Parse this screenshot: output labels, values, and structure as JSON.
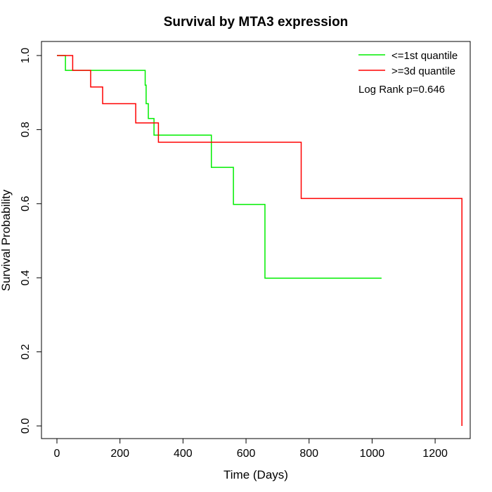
{
  "chart_data": {
    "type": "line",
    "subtype": "kaplan-meier-step",
    "title": "Survival by MTA3 expression",
    "xlabel": "Time (Days)",
    "ylabel": "Survival Probability",
    "xlim": [
      0,
      1260
    ],
    "ylim": [
      0,
      1
    ],
    "xticks": [
      0,
      200,
      400,
      600,
      800,
      1000,
      1200
    ],
    "xtick_labels": [
      "0",
      "200",
      "400",
      "600",
      "800",
      "1000",
      "1200"
    ],
    "yticks": [
      0.0,
      0.2,
      0.4,
      0.6,
      0.8,
      1.0
    ],
    "ytick_labels": [
      "0.0",
      "0.2",
      "0.4",
      "0.6",
      "0.8",
      "1.0"
    ],
    "grid": false,
    "legend_position": "top-right",
    "annotation": "Log Rank p=0.646",
    "series": [
      {
        "name": "<=1st quantile",
        "color": "#00ee00",
        "x": [
          0,
          27,
          27,
          280,
          280,
          283,
          283,
          290,
          290,
          308,
          308,
          355,
          355,
          490,
          490,
          560,
          560,
          660,
          660,
          1030
        ],
        "y": [
          1.0,
          1.0,
          0.96,
          0.96,
          0.92,
          0.92,
          0.87,
          0.87,
          0.83,
          0.83,
          0.785,
          0.785,
          0.785,
          0.785,
          0.698,
          0.698,
          0.598,
          0.598,
          0.399,
          0.399
        ]
      },
      {
        "name": ">=3d quantile",
        "color": "#ff0000",
        "x": [
          0,
          50,
          50,
          107,
          107,
          145,
          145,
          250,
          250,
          322,
          322,
          775,
          775,
          1285,
          1285
        ],
        "y": [
          1.0,
          1.0,
          0.96,
          0.96,
          0.915,
          0.915,
          0.87,
          0.87,
          0.818,
          0.818,
          0.766,
          0.766,
          0.614,
          0.614,
          0.0
        ]
      }
    ]
  }
}
